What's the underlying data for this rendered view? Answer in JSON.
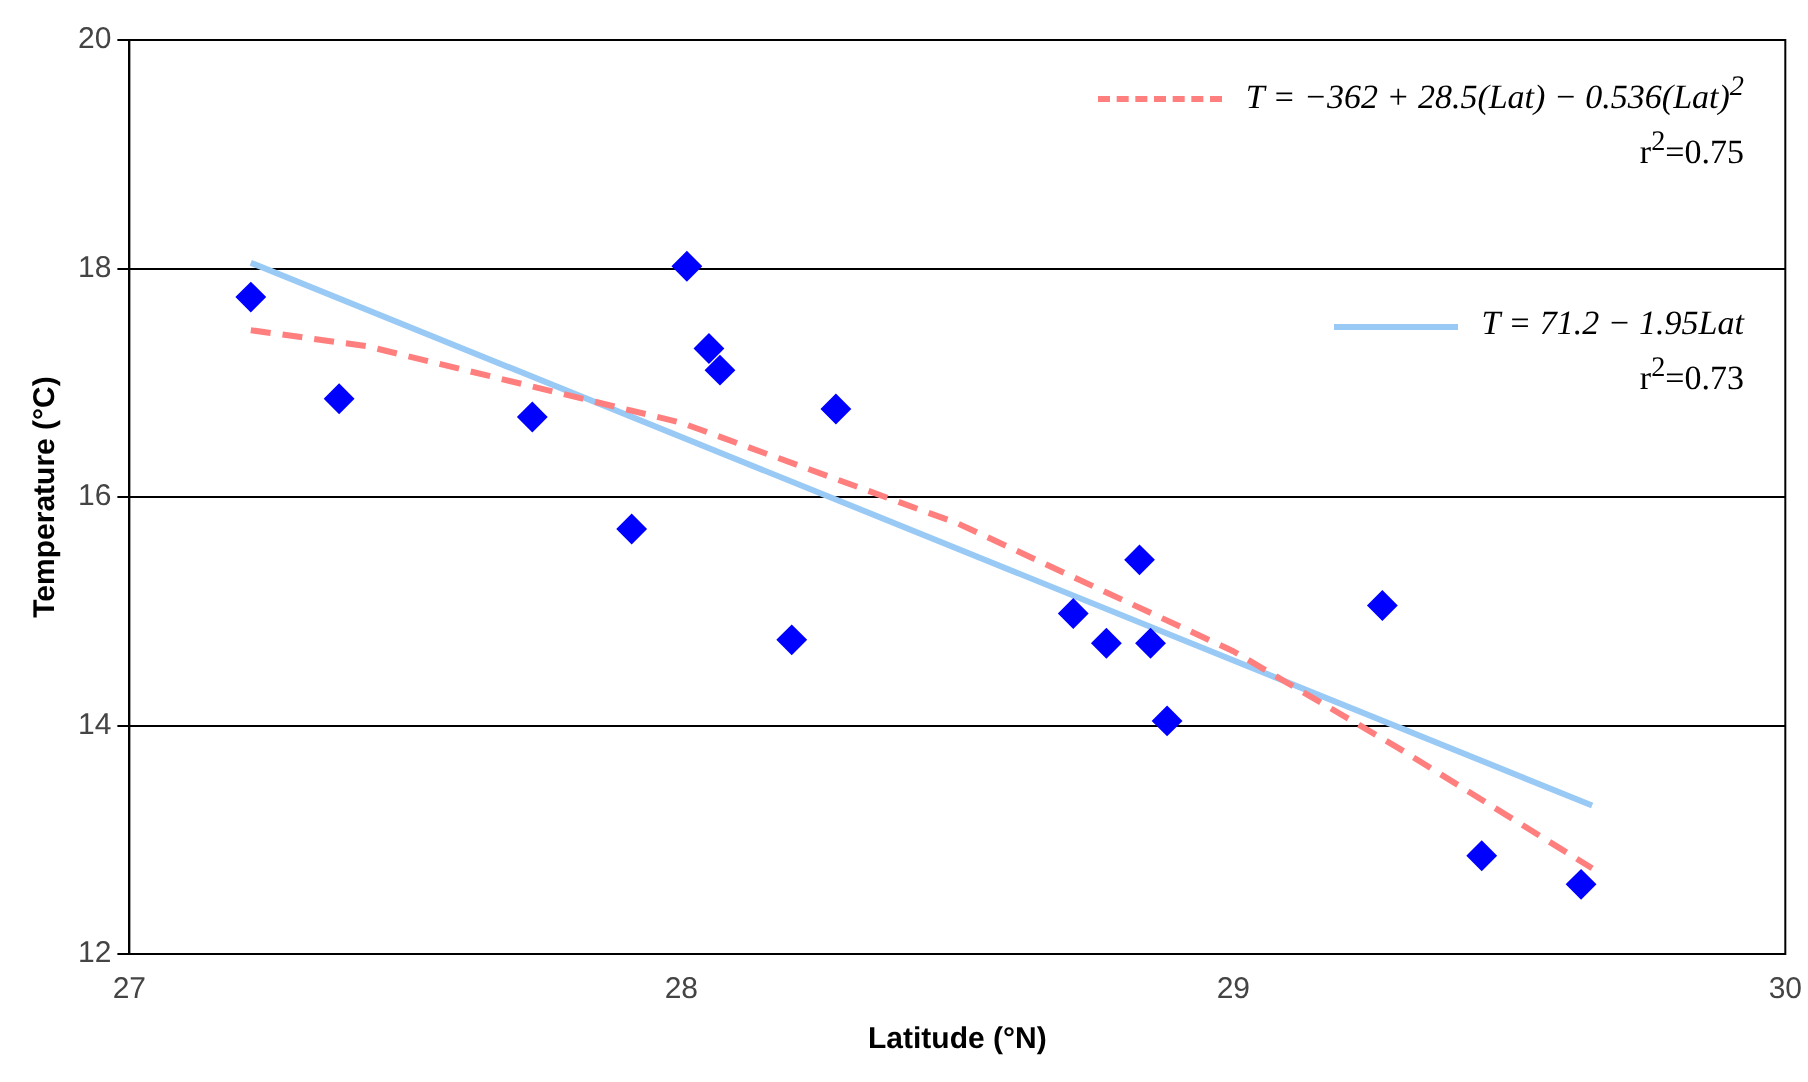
{
  "chart_data": {
    "type": "scatter",
    "xlabel": "Latitude (°N)",
    "ylabel": "Temperature (°C)",
    "xlim": [
      27,
      30
    ],
    "xticks": [
      27,
      28,
      29,
      30
    ],
    "ylim": [
      12,
      20
    ],
    "yticks": [
      12,
      14,
      16,
      18,
      20
    ],
    "grid": "y",
    "legend": "top right",
    "series": [
      {
        "color": "#0000ff",
        "marker": "diamond",
        "x": [
          27.22,
          27.38,
          27.73,
          27.91,
          28.01,
          28.05,
          28.07,
          28.2,
          28.28,
          28.71,
          28.77,
          28.83,
          28.85,
          28.88,
          29.27,
          29.45,
          29.63
        ],
        "values": [
          17.75,
          16.86,
          16.7,
          15.72,
          18.02,
          17.3,
          17.11,
          14.75,
          16.77,
          14.98,
          14.72,
          15.45,
          14.72,
          14.04,
          15.05,
          12.86,
          12.61
        ]
      },
      {
        "type": "line",
        "name": "T = −362 + 28.5(Lat) − 0.536(Lat)$^{2}$",
        "color": "#ff7f7f",
        "marker": "none",
        "line_style": "dashed",
        "x": [
          27.22,
          27.43,
          28,
          28.5,
          29,
          29.3,
          29.65
        ],
        "values": [
          17.46,
          17.32,
          16.65,
          15.77,
          14.65,
          13.8,
          12.75
        ]
      },
      {
        "type": "line",
        "name": "T = 71.2 − 1.95Lat",
        "color": "#99c9f5",
        "marker": "none",
        "line_style": "solid",
        "x": [
          27.22,
          29.65
        ],
        "values": [
          18.05,
          13.3
        ]
      }
    ],
    "annotations": [
      "r$^{2}$=0.75",
      "r$^{2}$=0.73"
    ]
  }
}
